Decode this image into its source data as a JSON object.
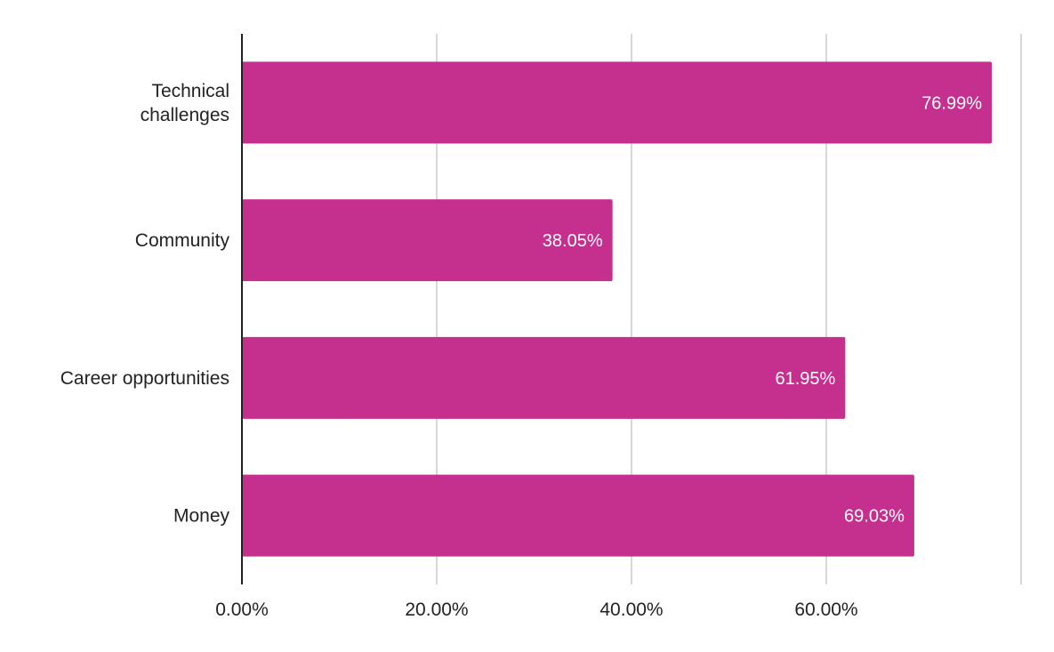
{
  "chart_data": {
    "type": "bar",
    "orientation": "horizontal",
    "categories": [
      "Technical challenges",
      "Community",
      "Career opportunities",
      "Money"
    ],
    "category_lines": [
      [
        "Technical",
        "challenges"
      ],
      [
        "Community"
      ],
      [
        "Career opportunities"
      ],
      [
        "Money"
      ]
    ],
    "values": [
      76.99,
      38.05,
      61.95,
      69.03
    ],
    "value_labels": [
      "76.99%",
      "38.05%",
      "61.95%",
      "69.03%"
    ],
    "xlim": [
      0,
      80
    ],
    "xticks": [
      0,
      20,
      40,
      60,
      80
    ],
    "xtick_labels": [
      "0.00%",
      "20.00%",
      "40.00%",
      "60.00%",
      ""
    ],
    "grid": "vertical",
    "bar_color": "#c5308f",
    "grid_color": "#cccccc",
    "axis_color": "#222222",
    "title": "",
    "xlabel": "",
    "ylabel": ""
  }
}
